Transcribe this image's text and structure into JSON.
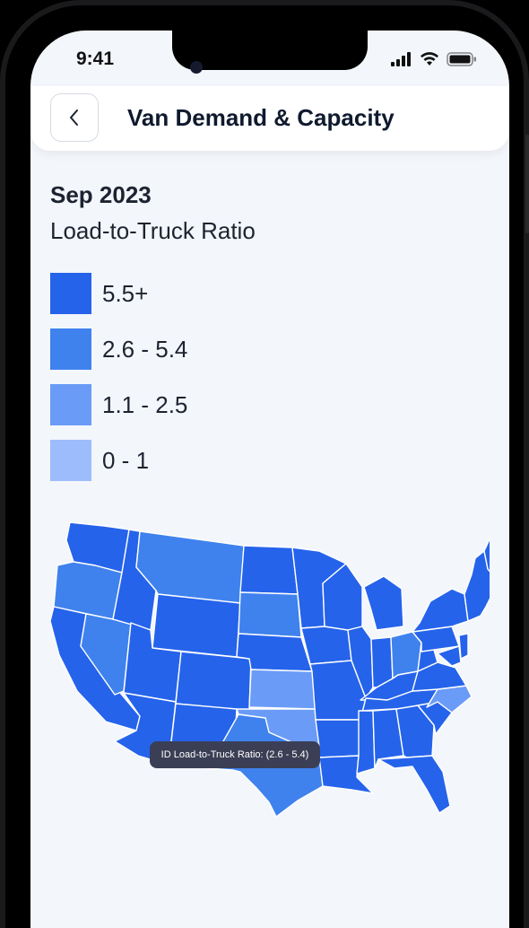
{
  "status": {
    "time": "9:41"
  },
  "header": {
    "title": "Van Demand & Capacity"
  },
  "period": {
    "label": "Sep 2023"
  },
  "metric": {
    "label": "Load-to-Truck Ratio"
  },
  "legend": [
    {
      "label": "5.5+",
      "color": "#2563eb"
    },
    {
      "label": "2.6 - 5.4",
      "color": "#3f82ee"
    },
    {
      "label": "1.1 - 2.5",
      "color": "#6a9bf7"
    },
    {
      "label": "0 - 1",
      "color": "#9dbcfb"
    }
  ],
  "map": {
    "tooltip": "ID Load-to-Truck Ratio: (2.6 - 5.4)"
  },
  "icons": {
    "back": "chevron-left-icon",
    "signal": "signal-icon",
    "wifi": "wifi-icon",
    "battery": "battery-icon"
  }
}
